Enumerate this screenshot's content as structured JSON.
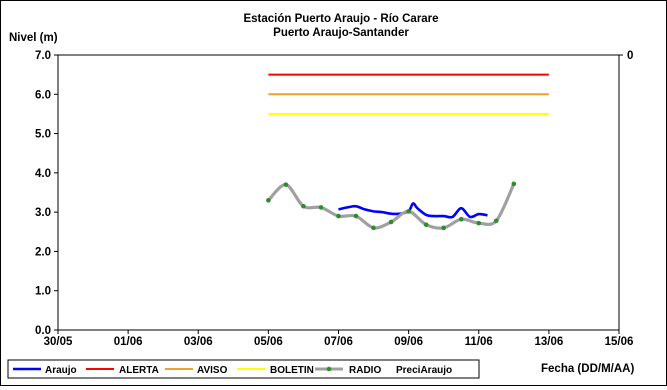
{
  "chart_data": {
    "type": "line",
    "title": "Estación Puerto Araujo - Río Carare",
    "subtitle": "Puerto Araujo-Santander",
    "ylabel": "Nivel (m)",
    "xlabel": "Fecha (DD/M/AA)",
    "y2_tick_label": "0",
    "ylim": [
      0,
      7
    ],
    "y_ticks": [
      "0.0",
      "1.0",
      "2.0",
      "3.0",
      "4.0",
      "5.0",
      "6.0",
      "7.0"
    ],
    "xlim": [
      "30/05",
      "15/06"
    ],
    "x_ticks": [
      "30/05",
      "01/06",
      "03/06",
      "05/06",
      "07/06",
      "09/06",
      "11/06",
      "13/06",
      "15/06"
    ],
    "grid": false,
    "legend_position": "bottom",
    "colors": {
      "Araujo": "#0000ff",
      "ALERTA": "#ff0000",
      "AVISO": "#f0a030",
      "BOLETIN": "#ffff00",
      "RADIO": "#a0a0a0",
      "RADIO_marker": "#2e8b2e"
    },
    "series": [
      {
        "name": "Araujo",
        "x": [
          "07/06",
          "07/06 06:00",
          "07/06 12:00",
          "07/06 18:00",
          "08/06",
          "08/06 06:00",
          "08/06 12:00",
          "08/06 18:00",
          "09/06",
          "09/06 03:00",
          "09/06 06:00",
          "09/06 12:00",
          "09/06 18:00",
          "10/06",
          "10/06 06:00",
          "10/06 12:00",
          "10/06 18:00",
          "11/06",
          "11/06 06:00"
        ],
        "values": [
          3.07,
          3.12,
          3.15,
          3.07,
          3.02,
          3.0,
          2.96,
          2.96,
          3.02,
          3.22,
          3.1,
          2.93,
          2.9,
          2.9,
          2.88,
          3.1,
          2.88,
          2.95,
          2.92
        ]
      },
      {
        "name": "RADIO",
        "x": [
          "05/06",
          "05/06 12:00",
          "06/06",
          "06/06 12:00",
          "07/06",
          "07/06 12:00",
          "08/06",
          "08/06 12:00",
          "09/06",
          "09/06 12:00",
          "10/06",
          "10/06 12:00",
          "11/06",
          "11/06 12:00",
          "12/06"
        ],
        "values": [
          3.3,
          3.7,
          3.15,
          3.12,
          2.9,
          2.9,
          2.6,
          2.75,
          3.02,
          2.68,
          2.6,
          2.82,
          2.72,
          2.78,
          3.72
        ]
      },
      {
        "name": "ALERTA",
        "x": [
          "05/06",
          "13/06"
        ],
        "values": [
          6.5,
          6.5
        ]
      },
      {
        "name": "AVISO",
        "x": [
          "05/06",
          "13/06"
        ],
        "values": [
          6.0,
          6.0
        ]
      },
      {
        "name": "BOLETIN",
        "x": [
          "05/06",
          "13/06"
        ],
        "values": [
          5.5,
          5.5
        ]
      }
    ],
    "legend": [
      "Araujo",
      "ALERTA",
      "AVISO",
      "BOLETIN",
      "RADIO",
      "PreciAraujo"
    ]
  }
}
